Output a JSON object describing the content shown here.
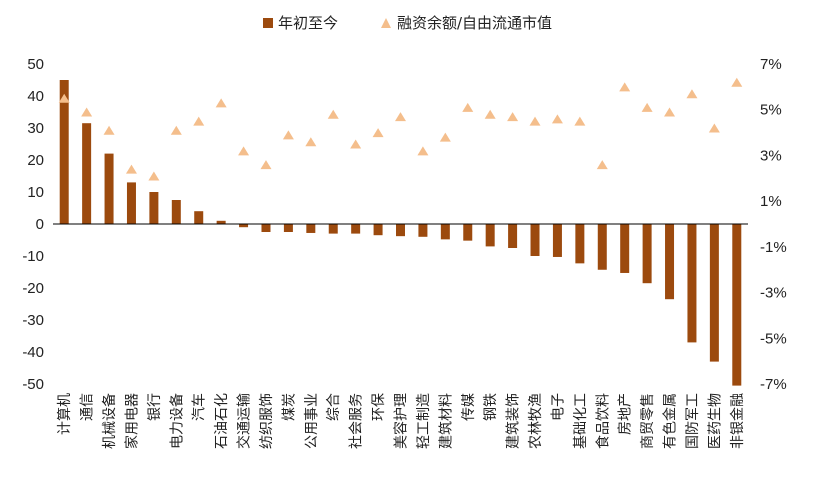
{
  "chart_data": {
    "type": "bar",
    "title": "",
    "legend": [
      {
        "name": "年初至今",
        "marker": "square",
        "color": "#9C4A0E"
      },
      {
        "name": "融资余额/自由流通市值",
        "marker": "triangle",
        "color": "#F4BE8C"
      }
    ],
    "categories": [
      "计算机",
      "通信",
      "机械设备",
      "家用电器",
      "银行",
      "电力设备",
      "汽车",
      "石油石化",
      "交通运输",
      "纺织服饰",
      "煤炭",
      "公用事业",
      "综合",
      "社会服务",
      "环保",
      "美容护理",
      "轻工制造",
      "建筑材料",
      "传媒",
      "钢铁",
      "建筑装饰",
      "农林牧渔",
      "电子",
      "基础化工",
      "食品饮料",
      "房地产",
      "商贸零售",
      "有色金属",
      "国防军工",
      "医药生物",
      "非银金融"
    ],
    "series": [
      {
        "name": "年初至今",
        "axis": "left",
        "type": "bar",
        "values": [
          45,
          31.5,
          22,
          13,
          10,
          7.5,
          4,
          1,
          -1,
          -2.5,
          -2.5,
          -2.8,
          -3,
          -3,
          -3.5,
          -3.8,
          -4,
          -4.8,
          -5.2,
          -7,
          -7.5,
          -10,
          -10.3,
          -12.3,
          -14.3,
          -15.3,
          -18.5,
          -23.5,
          -37,
          -43,
          -50.5
        ]
      },
      {
        "name": "融资余额/自由流通市值",
        "axis": "right",
        "type": "scatter",
        "values": [
          5.5,
          4.9,
          4.1,
          2.4,
          2.1,
          4.1,
          4.5,
          5.3,
          3.2,
          2.6,
          3.9,
          3.6,
          4.8,
          3.5,
          4.0,
          4.7,
          3.2,
          3.8,
          5.1,
          4.8,
          4.7,
          4.5,
          4.6,
          4.5,
          2.6,
          6.0,
          5.1,
          4.9,
          5.7,
          4.2,
          6.2
        ]
      }
    ],
    "y_left": {
      "min": -50,
      "max": 50,
      "ticks": [
        "50",
        "40",
        "30",
        "20",
        "10",
        "0",
        "-10",
        "-20",
        "-30",
        "-40",
        "-50"
      ]
    },
    "y_right": {
      "min": -7,
      "max": 7,
      "ticks": [
        "7%",
        "5%",
        "3%",
        "1%",
        "-1%",
        "-3%",
        "-5%",
        "-7%"
      ]
    }
  }
}
